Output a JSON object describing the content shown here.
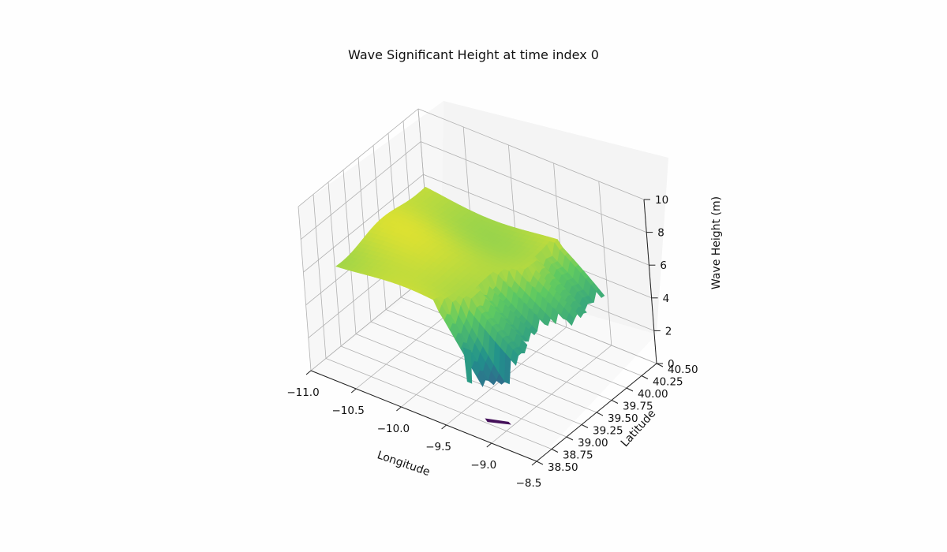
{
  "chart_data": {
    "type": "surface",
    "title": "Wave Significant Height at time index 0",
    "xlabel": "Longitude",
    "ylabel": "Latitude",
    "zlabel": "Wave Height (m)",
    "xlim": [
      -11.0,
      -8.5
    ],
    "ylim": [
      38.5,
      40.5
    ],
    "zlim": [
      0,
      10
    ],
    "x_ticks": [
      "−11.0",
      "−10.5",
      "−10.0",
      "−9.5",
      "−9.0",
      "−8.5"
    ],
    "y_ticks": [
      "38.50",
      "38.75",
      "39.00",
      "39.25",
      "39.50",
      "39.75",
      "40.00",
      "40.25",
      "40.50"
    ],
    "z_ticks": [
      "0",
      "2",
      "4",
      "6",
      "8",
      "10"
    ],
    "colormap": "viridis",
    "grid": true,
    "surface_summary": {
      "offshore_height_m": 5.5,
      "nearshore_height_range_m": [
        2.5,
        5.0
      ],
      "land_region_height_m": 0
    }
  }
}
